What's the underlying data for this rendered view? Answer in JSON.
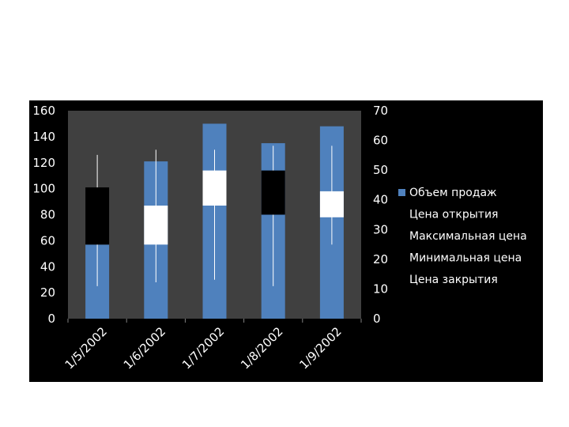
{
  "chart_data": {
    "type": "bar",
    "categories": [
      "1/5/2002",
      "1/6/2002",
      "1/7/2002",
      "1/8/2002",
      "1/9/2002"
    ],
    "volume": [
      57,
      121,
      150,
      135,
      148
    ],
    "open": [
      101,
      57,
      87,
      114,
      78
    ],
    "high": [
      126,
      130,
      130,
      133,
      133
    ],
    "low": [
      25,
      28,
      30,
      25,
      57
    ],
    "close": [
      57,
      87,
      114,
      80,
      98
    ],
    "y_left": {
      "ticks": [
        "0",
        "20",
        "40",
        "60",
        "80",
        "100",
        "120",
        "140",
        "160"
      ],
      "range": [
        0,
        160
      ]
    },
    "y_right": {
      "ticks": [
        "0",
        "10",
        "20",
        "30",
        "40",
        "50",
        "60",
        "70"
      ],
      "range": [
        0,
        70
      ]
    },
    "legend": [
      "Объем продаж",
      "Цена открытия",
      "Максимальная цена",
      "Минимальная цена",
      "Цена закрытия"
    ],
    "legend_position": "right",
    "colors": {
      "volume": "#4f81bd",
      "up_body": "#ffffff",
      "down_body": "#000000",
      "wick": "#ffffff",
      "plot_bg": "#404040",
      "chart_bg": "#000000"
    },
    "grid": false
  }
}
